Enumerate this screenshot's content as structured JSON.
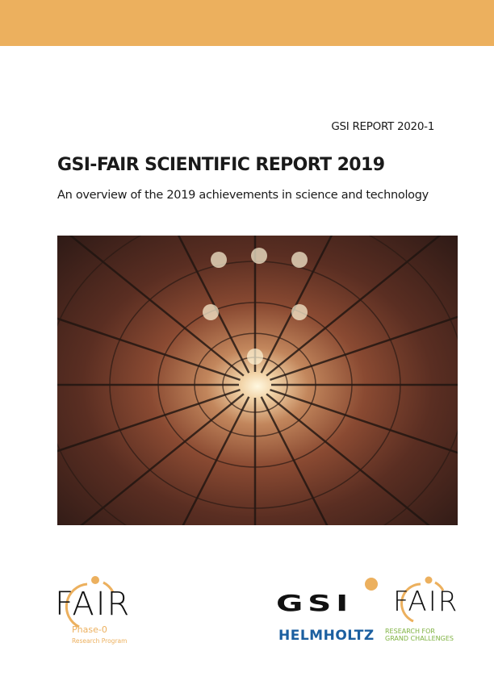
{
  "header_band": {
    "color": "#ecb05e"
  },
  "report_number": "GSI REPORT 2020-1",
  "title": "GSI-FAIR SCIENTIFIC REPORT 2019",
  "subtitle": "An overview of the 2019 achievements in science and technology",
  "cover_image": {
    "subject": "accelerator-vacuum-chamber-tunnel"
  },
  "logos": {
    "fair_phase0": {
      "letters": "FAIR",
      "line1": "Phase-0",
      "line2": "Research Program",
      "accent": "#ecb05e"
    },
    "gsi": {
      "letters": "GSI"
    },
    "fair": {
      "letters": "FAIR"
    },
    "helmholtz": {
      "name": "HELMHOLTZ",
      "tag1": "RESEARCH FOR",
      "tag2": "GRAND CHALLENGES",
      "color": "#1b5fa0",
      "tag_color": "#7fb241"
    }
  }
}
